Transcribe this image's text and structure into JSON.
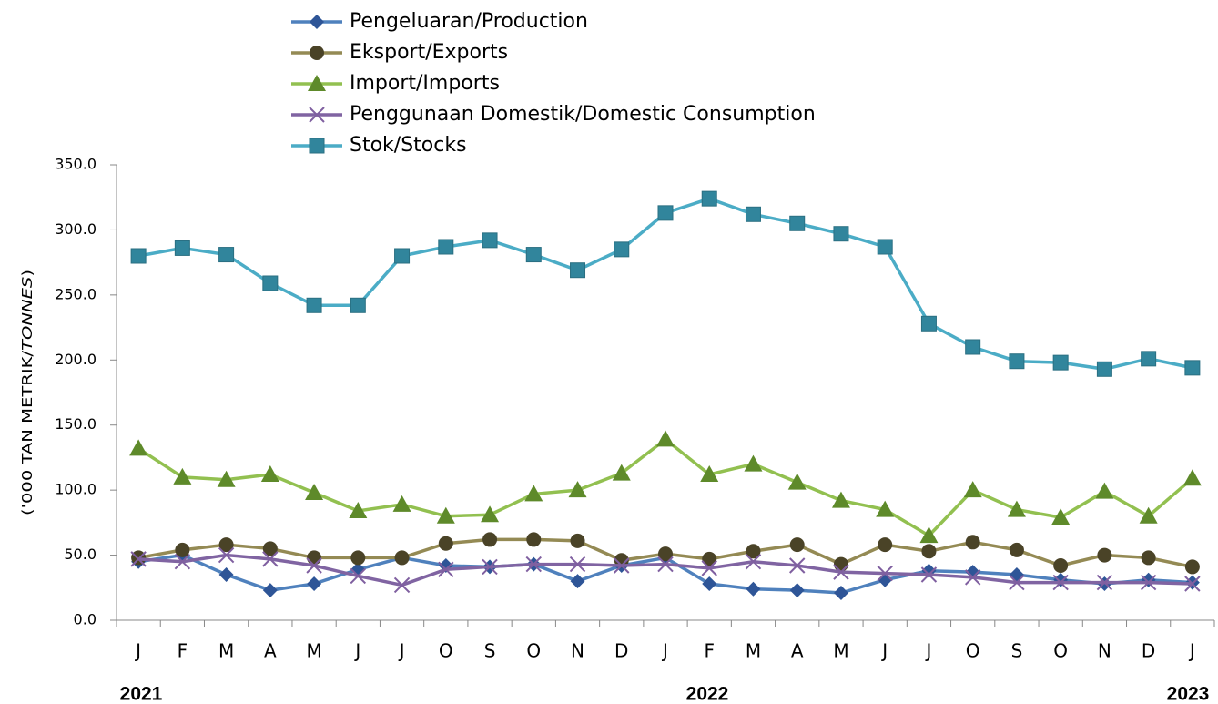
{
  "chart_data": {
    "type": "line",
    "y_label_parts": [
      "('000 TAN METRIK/",
      "TONNES",
      ")"
    ],
    "categories": [
      "J",
      "F",
      "M",
      "A",
      "M",
      "J",
      "J",
      "O",
      "S",
      "O",
      "N",
      "D",
      "J",
      "F",
      "M",
      "A",
      "M",
      "J",
      "J",
      "O",
      "S",
      "O",
      "N",
      "D",
      "J"
    ],
    "year_labels": [
      "2021",
      "2022",
      "2023"
    ],
    "ylim": [
      0,
      350
    ],
    "yticks": [
      {
        "value": 0,
        "label": "0.0"
      },
      {
        "value": 50,
        "label": "50.0"
      },
      {
        "value": 100,
        "label": "100.0"
      },
      {
        "value": 150,
        "label": "150.0"
      },
      {
        "value": 200,
        "label": "200.0"
      },
      {
        "value": 250,
        "label": "250.0"
      },
      {
        "value": 300,
        "label": "300.0"
      },
      {
        "value": 350,
        "label": "350.0"
      }
    ],
    "series": [
      {
        "name": "Pengeluaran/Production",
        "color": "#4f81bd",
        "marker": "diamond",
        "marker_color": "#2e5597",
        "values": [
          45,
          50,
          35,
          23,
          28,
          39,
          48,
          42,
          41,
          43,
          30,
          42,
          48,
          28,
          24,
          23,
          21,
          31,
          38,
          37,
          35,
          31,
          28,
          31,
          29
        ]
      },
      {
        "name": "Eksport/Exports",
        "color": "#948a54",
        "marker": "circle",
        "marker_color": "#4a4327",
        "values": [
          48,
          54,
          58,
          55,
          48,
          48,
          48,
          59,
          62,
          62,
          61,
          46,
          51,
          47,
          53,
          58,
          43,
          58,
          53,
          60,
          54,
          42,
          50,
          48,
          41
        ]
      },
      {
        "name": "Import/Imports",
        "color": "#92c050",
        "marker": "triangle",
        "marker_color": "#5e8a2a",
        "values": [
          132,
          110,
          108,
          112,
          98,
          84,
          89,
          80,
          81,
          97,
          100,
          113,
          139,
          112,
          120,
          106,
          92,
          85,
          65,
          100,
          85,
          79,
          99,
          80,
          109
        ]
      },
      {
        "name": "Penggunaan Domestik/Domestic Consumption",
        "color": "#8064a2",
        "marker": "x",
        "marker_color": "#7f5fa0",
        "values": [
          47,
          45,
          50,
          47,
          42,
          34,
          27,
          39,
          41,
          43,
          43,
          42,
          43,
          40,
          45,
          42,
          37,
          36,
          35,
          33,
          29,
          29,
          29,
          29,
          28
        ]
      },
      {
        "name": "Stok/Stocks",
        "color": "#4bacc6",
        "marker": "square",
        "marker_color": "#31859c",
        "values": [
          280,
          286,
          281,
          259,
          242,
          242,
          280,
          287,
          292,
          281,
          269,
          285,
          313,
          324,
          312,
          305,
          297,
          287,
          228,
          210,
          199,
          198,
          193,
          201,
          194
        ]
      }
    ]
  }
}
